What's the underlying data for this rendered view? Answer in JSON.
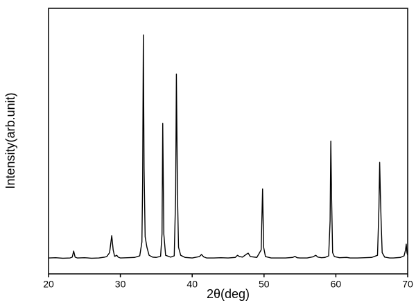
{
  "chart_data": {
    "type": "line",
    "x_label": "2θ(deg)",
    "y_label": "Intensity(arb.unit)",
    "xlim": [
      20,
      70
    ],
    "xticks": [
      20,
      30,
      40,
      50,
      60,
      70
    ],
    "ylim": [
      0,
      100
    ],
    "series": [
      {
        "color": "#000000",
        "x": [
          20,
          21,
          22,
          23,
          23.3,
          23.5,
          23.7,
          24,
          25,
          26,
          27,
          27.8,
          28.1,
          28.5,
          28.8,
          29,
          29.2,
          29.5,
          29.7,
          30,
          31,
          32,
          32.7,
          33,
          33.1,
          33.2,
          33.3,
          33.45,
          33.7,
          34,
          34.5,
          35,
          35.6,
          35.8,
          35.9,
          36.05,
          36.3,
          37,
          37.5,
          37.7,
          37.8,
          37.95,
          38.1,
          38.4,
          39,
          40,
          41,
          41.3,
          41.6,
          42,
          43,
          44,
          45,
          46,
          46.3,
          46.6,
          47,
          47.6,
          47.8,
          48.1,
          49,
          49.6,
          49.8,
          49.95,
          50.2,
          51,
          52,
          53,
          54,
          54.3,
          54.6,
          55,
          56,
          56.8,
          57.2,
          57.5,
          58,
          58.5,
          59,
          59.2,
          59.3,
          59.4,
          59.55,
          59.8,
          60.5,
          61.5,
          62,
          63,
          64,
          65,
          65.8,
          66,
          66.1,
          66.2,
          66.3,
          66.45,
          66.8,
          67.5,
          68,
          69,
          69.5,
          69.7,
          69.8,
          69.9,
          70
        ],
        "values": [
          6,
          6.1,
          5.9,
          6,
          6.3,
          8.6,
          6.3,
          6,
          6.1,
          5.9,
          6,
          6.3,
          6.5,
          8,
          14.4,
          9,
          6.6,
          7,
          6.3,
          6,
          6.1,
          6.2,
          6.8,
          12,
          35,
          90,
          40,
          14,
          10,
          7,
          6.3,
          6.2,
          6.6,
          15,
          56.7,
          15,
          7,
          6.3,
          6.8,
          30,
          75.2,
          30,
          10,
          7,
          6.2,
          6,
          6.5,
          7.3,
          6.4,
          6,
          6,
          6.1,
          6,
          6.2,
          7,
          6.5,
          6.3,
          7.5,
          7.8,
          6.5,
          6.2,
          9,
          32,
          10,
          6.5,
          6,
          6,
          6,
          6.2,
          6.6,
          6.1,
          6,
          6,
          6.4,
          7,
          6.3,
          6.1,
          6.2,
          6.8,
          20,
          50,
          30,
          8,
          6.5,
          6.1,
          6.2,
          6,
          6,
          6.1,
          6.2,
          7,
          25,
          42,
          30,
          20,
          8,
          6.3,
          6,
          6,
          6.2,
          6.8,
          9,
          11.2,
          8,
          7
        ]
      }
    ]
  }
}
